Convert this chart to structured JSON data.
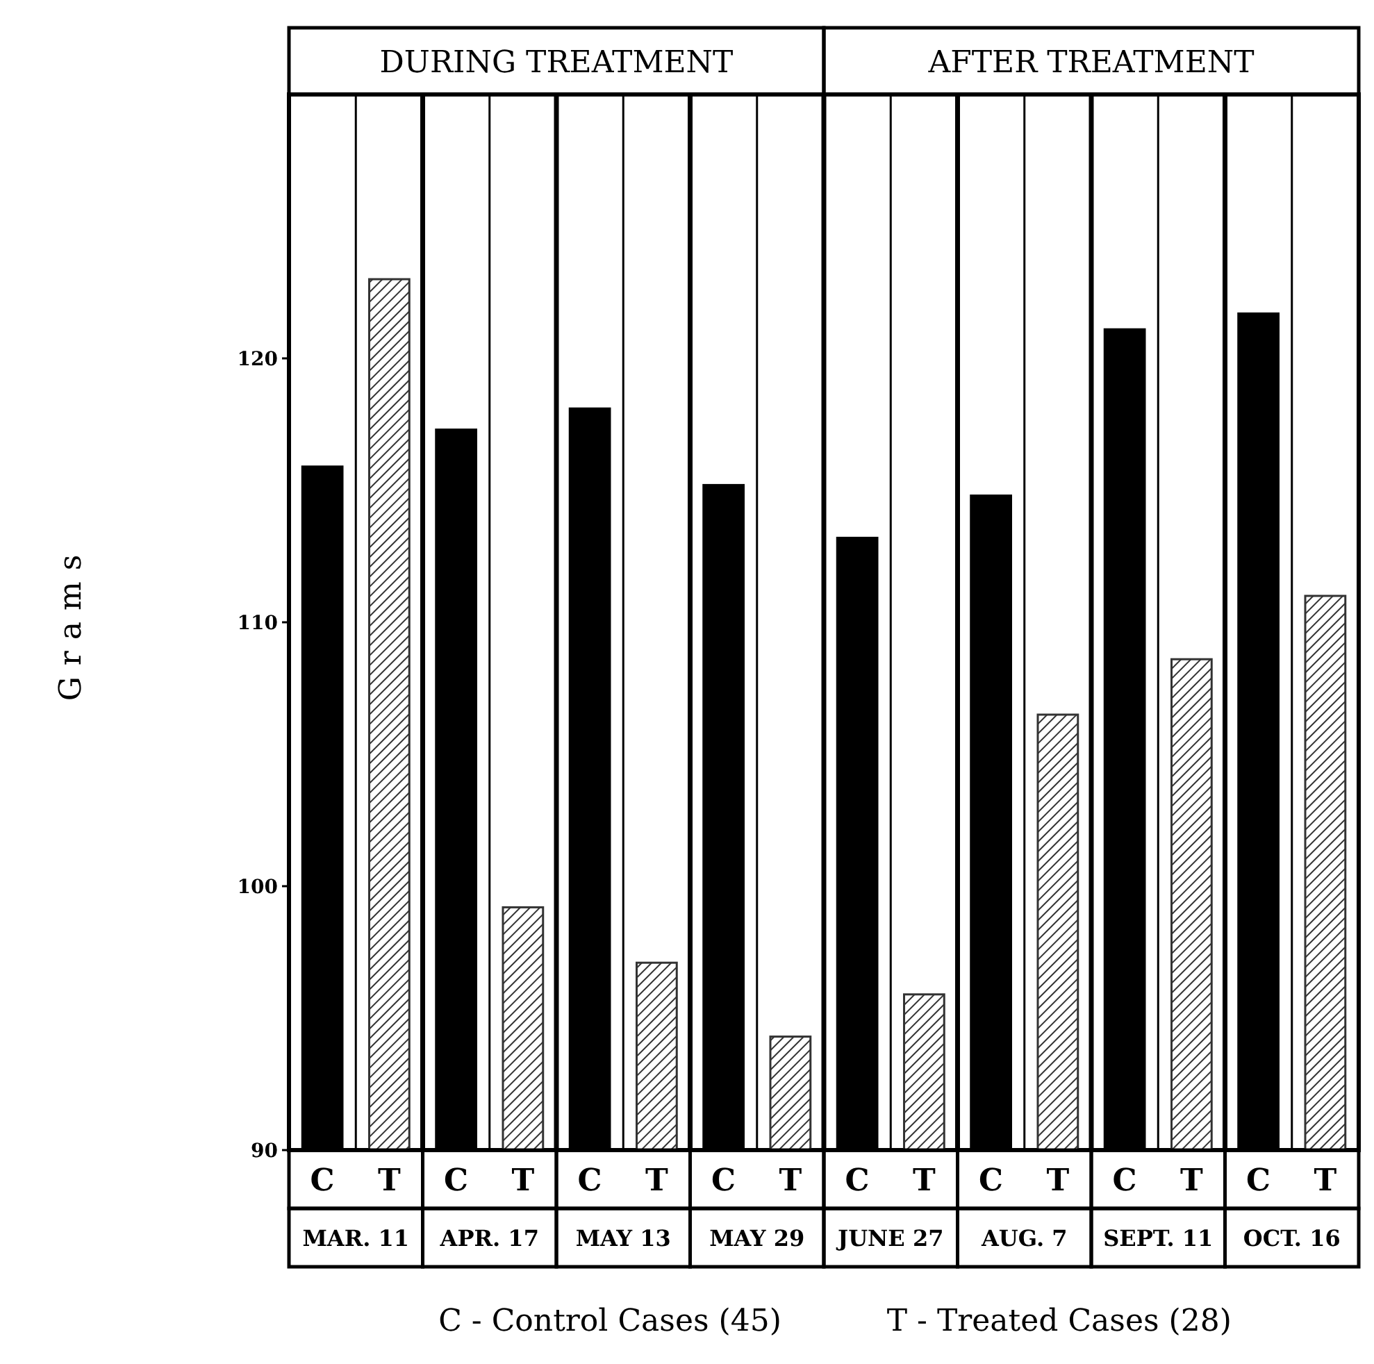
{
  "chart_data": {
    "type": "bar",
    "ylabel": "Grams",
    "categories": [
      "MAR. 11",
      "APR. 17",
      "MAY 13",
      "MAY 29",
      "JUNE 27",
      "AUG. 7",
      "SEPT. 11",
      "OCT. 16"
    ],
    "series": [
      {
        "name": "C",
        "color": "#000000",
        "values": [
          115.9,
          117.3,
          118.1,
          115.2,
          113.2,
          114.8,
          121.1,
          121.7
        ]
      },
      {
        "name": "T",
        "color": "#333333",
        "values": [
          123.0,
          99.2,
          97.1,
          94.3,
          95.9,
          106.5,
          108.6,
          111.0
        ]
      }
    ],
    "ylim": [
      90,
      130
    ],
    "yticks": [
      90,
      100,
      110,
      120
    ],
    "grid": "x",
    "annotations": [
      "DURING TREATMENT",
      "AFTER TREATMENT",
      "C - Control Cases (45)",
      "T - Treated Cases (28)"
    ]
  }
}
